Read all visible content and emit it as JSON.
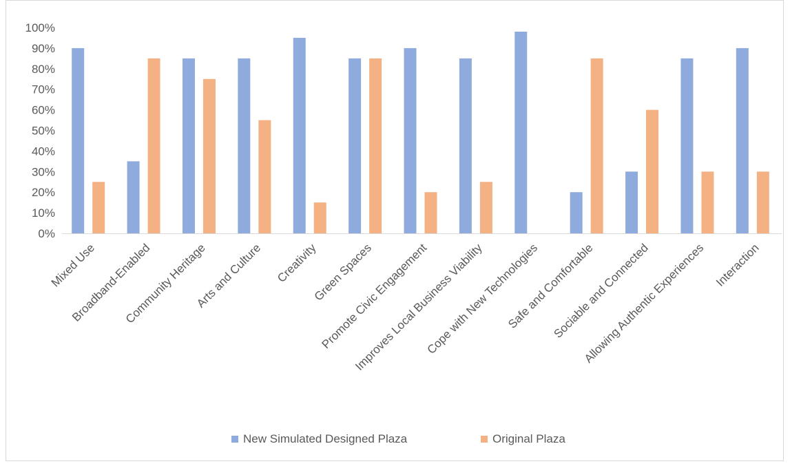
{
  "chart_data": {
    "type": "bar",
    "categories": [
      "Mixed Use",
      "Broadband-Enabled",
      "Community Heritage",
      "Arts and Culture",
      "Creativity",
      "Green Spaces",
      "Promote Civic Engagement",
      "Improves Local Business Viability",
      "Cope with New Technologies",
      "Safe and Comfortable",
      "Sociable and Connected",
      "Allowing Authentic Experiences",
      "Interaction"
    ],
    "series": [
      {
        "name": "New Simulated Designed Plaza",
        "color": "#8faadc",
        "values": [
          90,
          35,
          85,
          85,
          95,
          85,
          90,
          85,
          98,
          20,
          30,
          85,
          90
        ]
      },
      {
        "name": "Original Plaza",
        "color": "#f4b183",
        "values": [
          25,
          85,
          75,
          55,
          15,
          85,
          20,
          25,
          0,
          85,
          60,
          30,
          30
        ]
      }
    ],
    "ylim": [
      0,
      100
    ],
    "yticks": [
      "0%",
      "10%",
      "20%",
      "30%",
      "40%",
      "50%",
      "60%",
      "70%",
      "80%",
      "90%",
      "100%"
    ],
    "grid": false,
    "legend_position": "bottom",
    "title": "",
    "xlabel": "",
    "ylabel": ""
  }
}
